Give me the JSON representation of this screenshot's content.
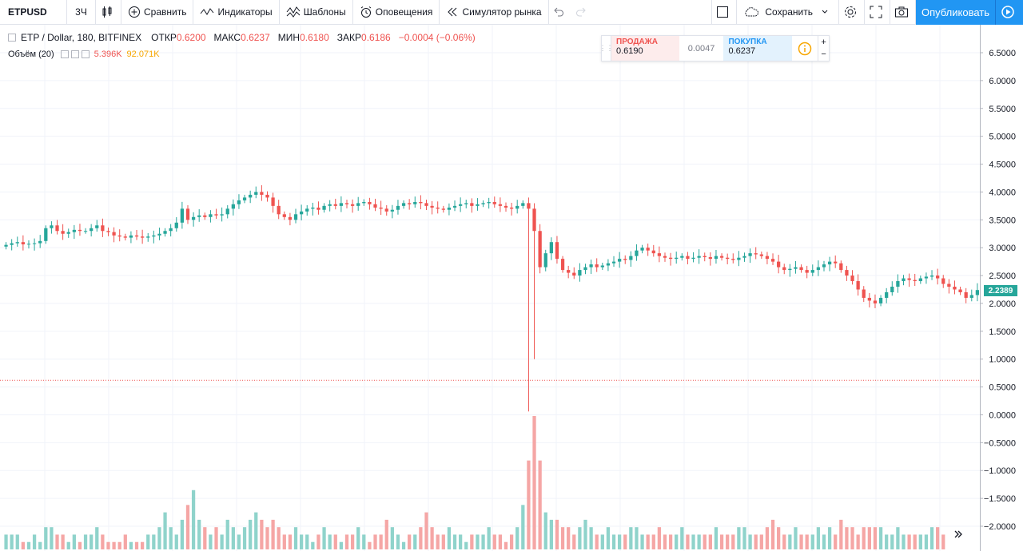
{
  "toolbar": {
    "symbol": "ETPUSD",
    "interval": "3Ч",
    "compare": "Сравнить",
    "indicators": "Индикаторы",
    "templates": "Шаблоны",
    "alerts": "Оповещения",
    "replay": "Симулятор рынка",
    "save": "Сохранить",
    "publish": "Опубликовать"
  },
  "legend": {
    "symbol": "ETP / Dollar, 180, BITFINEX",
    "open_label": "ОТКР",
    "open": "0.6200",
    "high_label": "МАКС",
    "high": "0.6237",
    "low_label": "МИН",
    "low": "0.6180",
    "close_label": "ЗАКР",
    "close": "0.6186",
    "change": "−0.0004 (−0.06%)",
    "volume_name": "Объём (20)",
    "volume_1": "5.396K",
    "volume_2": "92.071K"
  },
  "trade": {
    "sell_label": "ПРОДАЖА",
    "sell_price": "0.6190",
    "spread": "0.0047",
    "buy_label": "ПОКУПКА",
    "buy_price": "0.6237"
  },
  "price_tag": "2.2389",
  "colors": {
    "up": "#26a69a",
    "down": "#ef5350",
    "accent": "#2196f3"
  },
  "chart_data": {
    "type": "candlestick",
    "y_axis_ticks": [
      "6.5000",
      "6.0000",
      "5.5000",
      "5.0000",
      "4.5000",
      "4.0000",
      "3.5000",
      "3.0000",
      "2.5000",
      "2.0000",
      "1.5000",
      "1.0000",
      "0.5000",
      "0.0000",
      "−0.5000",
      "−1.0000",
      "−1.5000",
      "−2.0000"
    ],
    "ylim": [
      -2.3,
      7.0
    ],
    "current_price": 2.2389,
    "horizontal_line": 0.62,
    "close_series": [
      3.05,
      3.08,
      3.1,
      3.06,
      3.07,
      3.08,
      3.12,
      3.35,
      3.4,
      3.3,
      3.25,
      3.28,
      3.32,
      3.3,
      3.3,
      3.35,
      3.4,
      3.3,
      3.28,
      3.22,
      3.2,
      3.18,
      3.22,
      3.2,
      3.18,
      3.2,
      3.22,
      3.25,
      3.3,
      3.35,
      3.45,
      3.7,
      3.5,
      3.55,
      3.58,
      3.55,
      3.6,
      3.58,
      3.6,
      3.7,
      3.78,
      3.85,
      3.9,
      3.95,
      4.0,
      3.95,
      3.9,
      3.75,
      3.6,
      3.55,
      3.5,
      3.6,
      3.65,
      3.7,
      3.72,
      3.68,
      3.75,
      3.78,
      3.75,
      3.8,
      3.78,
      3.75,
      3.8,
      3.82,
      3.78,
      3.72,
      3.7,
      3.65,
      3.68,
      3.75,
      3.8,
      3.78,
      3.82,
      3.8,
      3.75,
      3.72,
      3.7,
      3.68,
      3.72,
      3.75,
      3.78,
      3.8,
      3.75,
      3.78,
      3.8,
      3.82,
      3.78,
      3.75,
      3.72,
      3.7,
      3.75,
      3.8,
      3.7,
      3.3,
      2.65,
      2.9,
      3.1,
      2.8,
      2.6,
      2.55,
      2.5,
      2.6,
      2.65,
      2.7,
      2.65,
      2.68,
      2.72,
      2.75,
      2.8,
      2.78,
      2.85,
      2.95,
      3.0,
      2.95,
      2.9,
      2.85,
      2.82,
      2.8,
      2.82,
      2.85,
      2.8,
      2.82,
      2.85,
      2.83,
      2.8,
      2.85,
      2.82,
      2.8,
      2.78,
      2.82,
      2.85,
      2.9,
      2.88,
      2.85,
      2.8,
      2.75,
      2.65,
      2.6,
      2.62,
      2.65,
      2.6,
      2.55,
      2.6,
      2.65,
      2.7,
      2.75,
      2.72,
      2.6,
      2.5,
      2.4,
      2.25,
      2.1,
      2.05,
      2.0,
      2.1,
      2.2,
      2.3,
      2.4,
      2.45,
      2.42,
      2.4,
      2.45,
      2.48,
      2.5,
      2.45,
      2.35,
      2.3,
      2.25,
      2.2,
      2.1,
      2.15,
      2.24
    ],
    "volume_series": [
      2,
      2,
      2,
      1,
      1,
      2,
      1,
      3,
      3,
      2,
      2,
      1,
      2,
      1,
      2,
      2,
      3,
      2,
      1,
      1,
      1,
      2,
      1,
      1,
      1,
      2,
      2,
      3,
      5,
      3,
      2,
      4,
      6,
      8,
      4,
      3,
      2,
      3,
      2,
      4,
      3,
      2,
      3,
      4,
      5,
      4,
      3,
      4,
      3,
      2,
      2,
      3,
      2,
      2,
      1,
      2,
      3,
      2,
      2,
      1,
      2,
      2,
      3,
      2,
      1,
      2,
      2,
      4,
      3,
      2,
      1,
      2,
      2,
      3,
      5,
      3,
      2,
      2,
      3,
      2,
      2,
      1,
      2,
      2,
      2,
      3,
      2,
      2,
      1,
      2,
      3,
      6,
      12,
      18,
      12,
      5,
      4,
      4,
      3,
      3,
      2,
      3,
      4,
      3,
      2,
      2,
      3,
      2,
      2,
      2,
      3,
      3,
      2,
      2,
      2,
      3,
      2,
      2,
      2,
      3,
      2,
      2,
      2,
      2,
      2,
      3,
      2,
      2,
      2,
      3,
      3,
      2,
      2,
      2,
      3,
      4,
      3,
      2,
      2,
      3,
      2,
      2,
      2,
      3,
      2,
      3,
      2,
      4,
      3,
      3,
      2,
      3,
      3,
      3,
      3,
      2,
      2,
      3,
      2,
      2,
      2,
      2,
      2,
      3,
      3,
      2
    ]
  }
}
